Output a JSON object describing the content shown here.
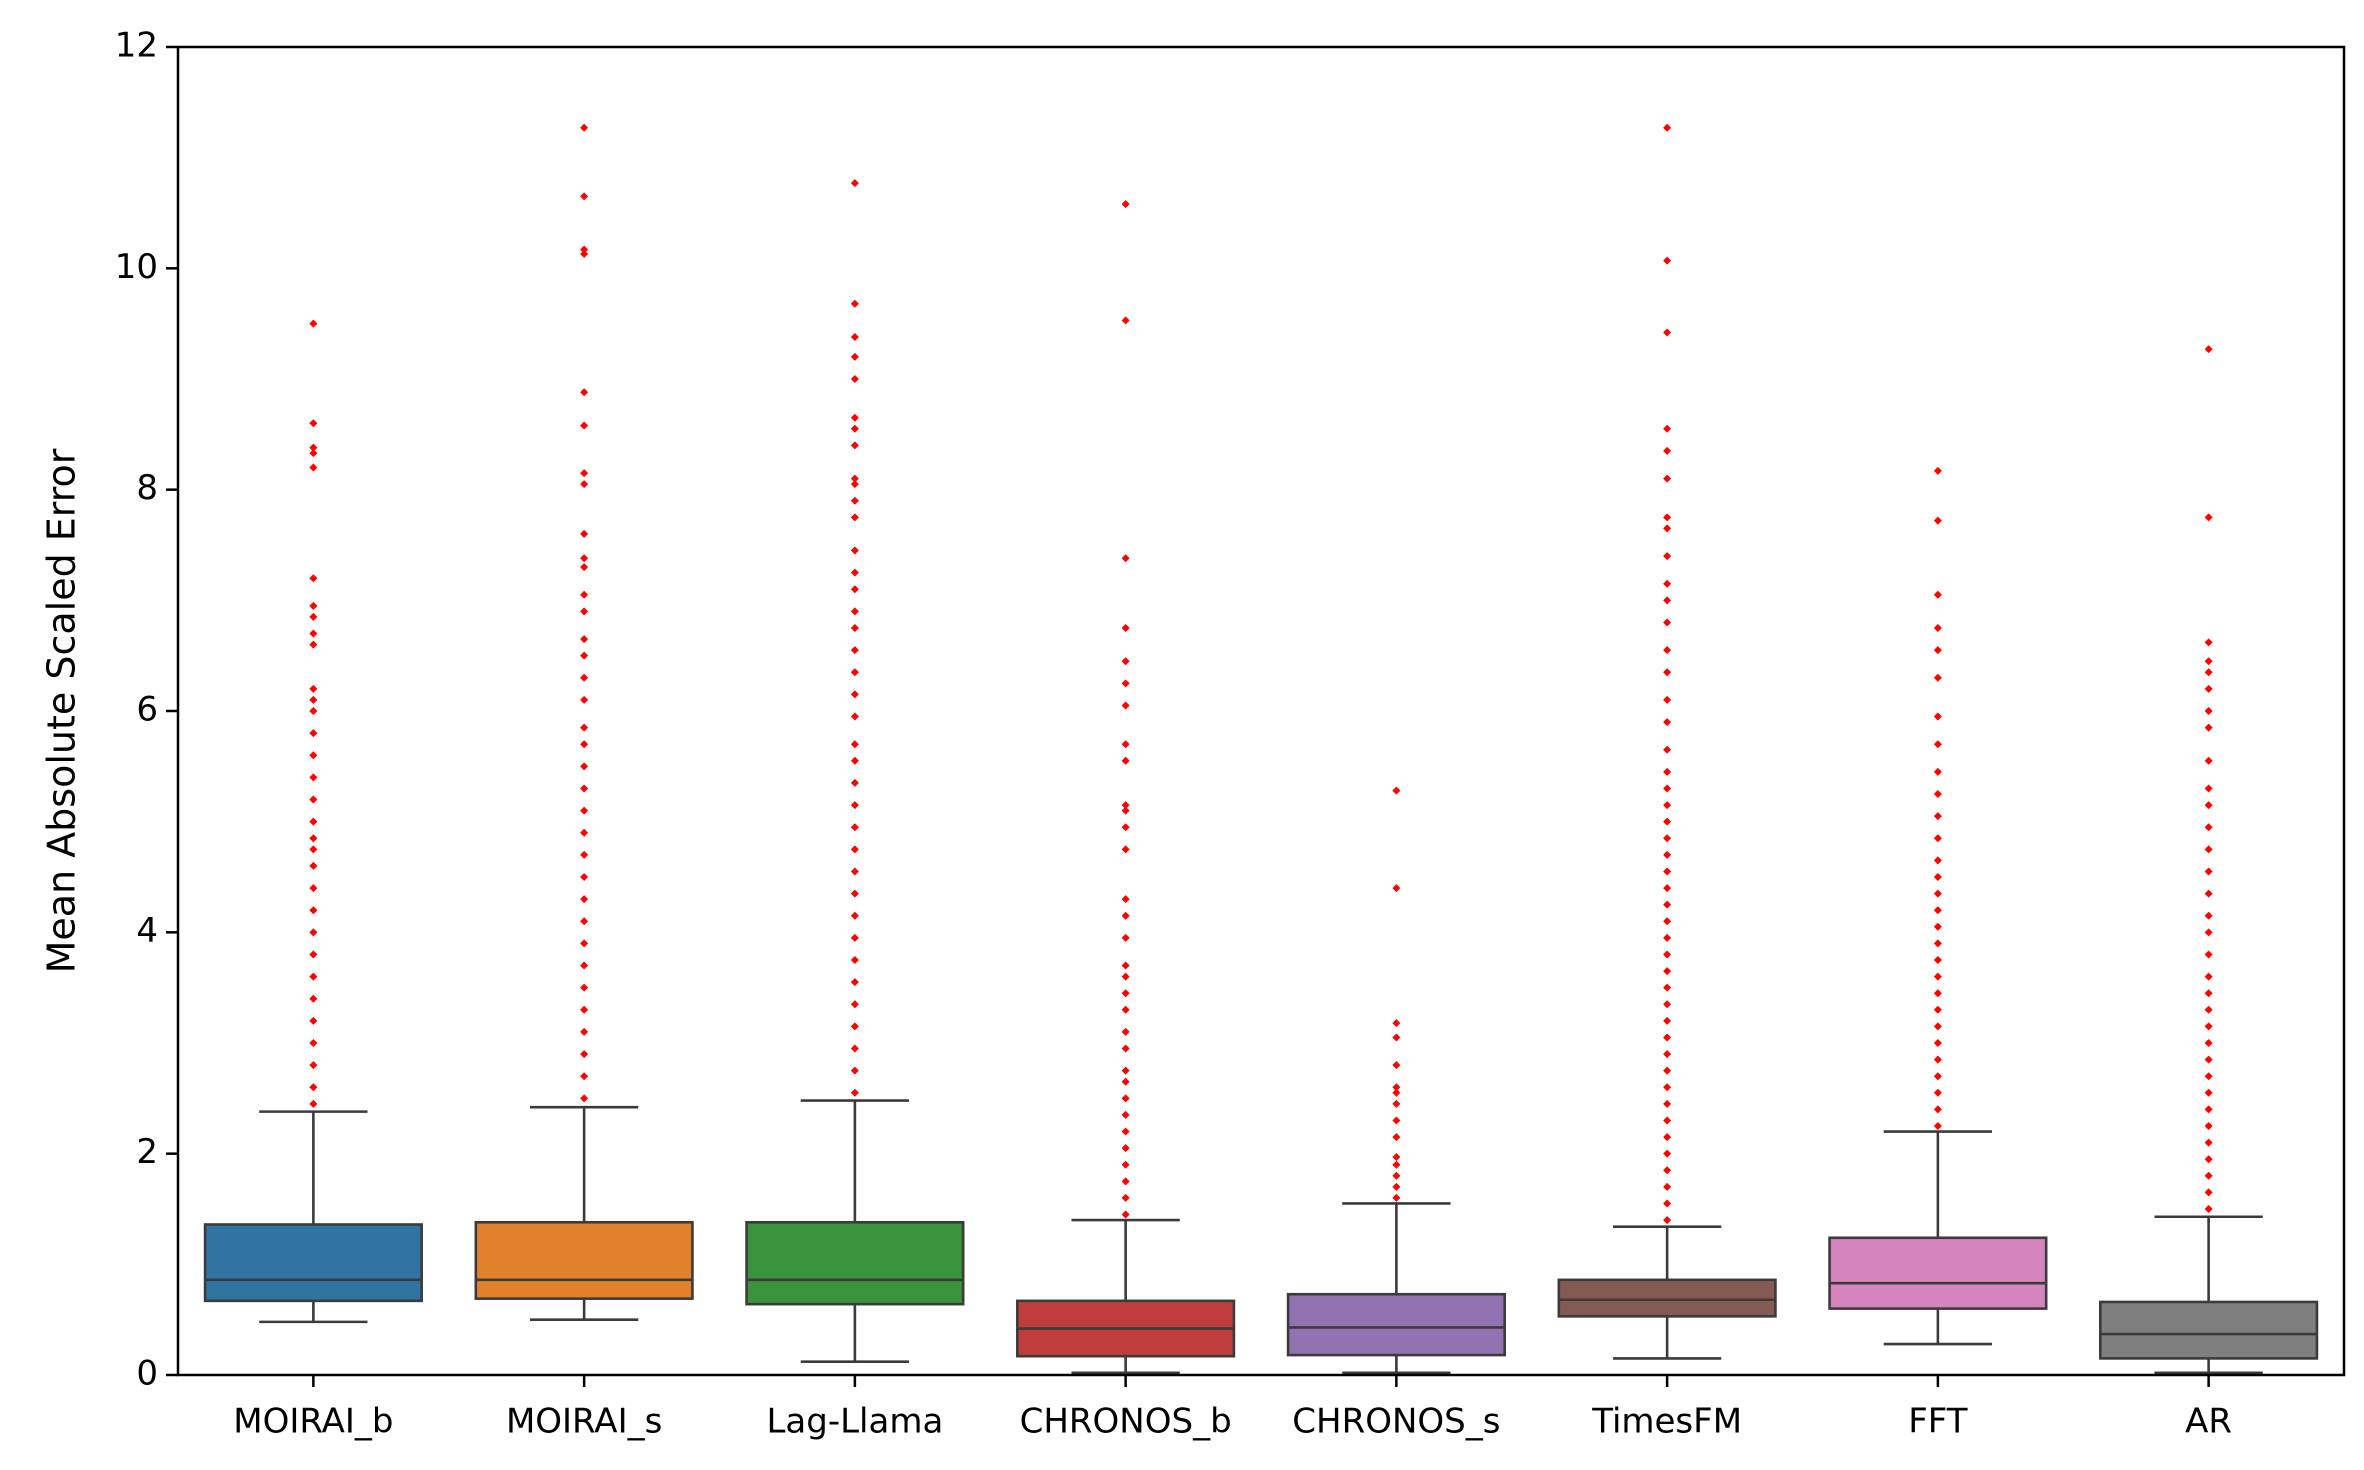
{
  "chart_data": {
    "type": "boxplot",
    "title": "",
    "xlabel": "",
    "ylabel": "Mean Absolute Scaled Error",
    "ylim": [
      0,
      12
    ],
    "yticks": [
      "0",
      "2",
      "4",
      "6",
      "8",
      "10",
      "12"
    ],
    "grid": false,
    "outlier_color": "#ff0000",
    "categories": [
      "MOIRAI_b",
      "MOIRAI_s",
      "Lag-Llama",
      "CHRONOS_b",
      "CHRONOS_s",
      "TimesFM",
      "FFT",
      "AR"
    ],
    "colors": [
      "#3274a1",
      "#e1812c",
      "#3a923a",
      "#c03d3e",
      "#9372b2",
      "#845b53",
      "#d684bd",
      "#7f7f7f"
    ],
    "boxes": [
      {
        "whislo": 0.48,
        "q1": 0.67,
        "med": 0.86,
        "q3": 1.36,
        "whishi": 2.38,
        "fliers": [
          2.45,
          2.6,
          2.8,
          3.0,
          3.2,
          3.4,
          3.6,
          3.8,
          4.0,
          4.2,
          4.4,
          4.6,
          4.75,
          4.85,
          5.0,
          5.2,
          5.4,
          5.6,
          5.8,
          6.0,
          6.1,
          6.2,
          6.6,
          6.7,
          6.85,
          6.95,
          7.2,
          8.2,
          8.33,
          8.38,
          8.6,
          9.5
        ]
      },
      {
        "whislo": 0.5,
        "q1": 0.69,
        "med": 0.86,
        "q3": 1.38,
        "whishi": 2.42,
        "fliers": [
          2.5,
          2.7,
          2.9,
          3.1,
          3.3,
          3.5,
          3.7,
          3.9,
          4.1,
          4.3,
          4.5,
          4.7,
          4.9,
          5.1,
          5.3,
          5.5,
          5.7,
          5.85,
          6.1,
          6.3,
          6.5,
          6.65,
          6.9,
          7.05,
          7.3,
          7.38,
          7.6,
          8.05,
          8.15,
          8.58,
          8.88,
          10.13,
          10.17,
          10.65,
          11.27
        ]
      },
      {
        "whislo": 0.12,
        "q1": 0.64,
        "med": 0.86,
        "q3": 1.38,
        "whishi": 2.48,
        "fliers": [
          2.55,
          2.75,
          2.95,
          3.15,
          3.35,
          3.55,
          3.75,
          3.95,
          4.15,
          4.35,
          4.55,
          4.75,
          4.95,
          5.15,
          5.35,
          5.55,
          5.7,
          5.95,
          6.15,
          6.35,
          6.55,
          6.75,
          6.9,
          7.1,
          7.25,
          7.45,
          7.75,
          7.9,
          8.05,
          8.1,
          8.4,
          8.55,
          8.65,
          9.0,
          9.2,
          9.38,
          9.68,
          10.77
        ]
      },
      {
        "whislo": 0.02,
        "q1": 0.17,
        "med": 0.42,
        "q3": 0.67,
        "whishi": 1.4,
        "fliers": [
          1.45,
          1.6,
          1.75,
          1.9,
          2.05,
          2.2,
          2.35,
          2.5,
          2.65,
          2.75,
          2.95,
          3.1,
          3.3,
          3.45,
          3.6,
          3.7,
          3.95,
          4.15,
          4.3,
          4.75,
          4.95,
          5.1,
          5.15,
          5.55,
          5.7,
          6.05,
          6.25,
          6.45,
          6.75,
          7.38,
          9.53,
          10.58
        ]
      },
      {
        "whislo": 0.02,
        "q1": 0.18,
        "med": 0.43,
        "q3": 0.73,
        "whishi": 1.55,
        "fliers": [
          1.6,
          1.7,
          1.8,
          1.9,
          1.97,
          2.15,
          2.3,
          2.45,
          2.55,
          2.6,
          2.8,
          3.05,
          3.18,
          4.4,
          5.28
        ]
      },
      {
        "whislo": 0.15,
        "q1": 0.53,
        "med": 0.68,
        "q3": 0.86,
        "whishi": 1.34,
        "fliers": [
          1.4,
          1.55,
          1.7,
          1.85,
          2.0,
          2.15,
          2.3,
          2.45,
          2.6,
          2.75,
          2.9,
          3.05,
          3.2,
          3.35,
          3.5,
          3.65,
          3.8,
          3.95,
          4.1,
          4.25,
          4.4,
          4.55,
          4.7,
          4.85,
          5.0,
          5.15,
          5.3,
          5.45,
          5.65,
          5.9,
          6.1,
          6.35,
          6.55,
          6.8,
          7.0,
          7.15,
          7.4,
          7.65,
          7.75,
          8.1,
          8.35,
          8.55,
          9.42,
          10.07,
          11.27
        ]
      },
      {
        "whislo": 0.28,
        "q1": 0.6,
        "med": 0.83,
        "q3": 1.24,
        "whishi": 2.2,
        "fliers": [
          2.25,
          2.4,
          2.55,
          2.7,
          2.85,
          3.0,
          3.15,
          3.3,
          3.45,
          3.6,
          3.75,
          3.9,
          4.05,
          4.2,
          4.35,
          4.5,
          4.65,
          4.85,
          5.05,
          5.25,
          5.45,
          5.7,
          5.95,
          6.3,
          6.55,
          6.75,
          7.05,
          7.72,
          8.17
        ]
      },
      {
        "whislo": 0.02,
        "q1": 0.15,
        "med": 0.37,
        "q3": 0.66,
        "whishi": 1.43,
        "fliers": [
          1.5,
          1.65,
          1.8,
          1.95,
          2.1,
          2.25,
          2.4,
          2.55,
          2.7,
          2.85,
          3.0,
          3.15,
          3.3,
          3.45,
          3.6,
          3.8,
          4.0,
          4.15,
          4.35,
          4.55,
          4.75,
          4.95,
          5.15,
          5.3,
          5.55,
          5.85,
          6.0,
          6.2,
          6.35,
          6.45,
          6.62,
          7.75,
          9.27
        ]
      }
    ]
  }
}
